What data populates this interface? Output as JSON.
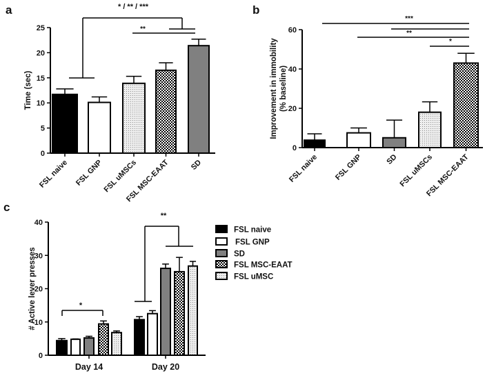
{
  "chart_data": [
    {
      "panel_label": "a",
      "type": "bar",
      "ylabel": "Time (sec)",
      "ylim": [
        0,
        25
      ],
      "yticks": [
        "0",
        "5",
        "10",
        "15",
        "20",
        "25"
      ],
      "categories": [
        "FSL naive",
        "FSL GNP",
        "FSL uMSCs",
        "FSL MSC-EAAT",
        "SD"
      ],
      "values": [
        11.7,
        10.1,
        13.9,
        16.5,
        21.4
      ],
      "error_upper": [
        12.8,
        11.2,
        15.3,
        18.0,
        22.7
      ],
      "fills": [
        "solid-black",
        "white",
        "dotted",
        "checker",
        "gray"
      ],
      "annotations": [
        {
          "text": "* / ** / ***",
          "compare": "FSL naive & FSL GNP vs FSL MSC-EAAT & SD"
        },
        {
          "text": "**",
          "compare": "FSL uMSCs vs SD"
        }
      ]
    },
    {
      "panel_label": "b",
      "type": "bar",
      "ylabel": "Improvement in immobility",
      "ylabel2": "(% baseline)",
      "ylim": [
        0,
        60
      ],
      "yticks": [
        "0",
        "20",
        "40",
        "60"
      ],
      "categories": [
        "FSL naive",
        "FSL GNP",
        "SD",
        "FSL uMSCs",
        "FSL MSC-EAAT"
      ],
      "values": [
        3.8,
        7.5,
        5.0,
        18.0,
        43.0
      ],
      "error_upper": [
        7.0,
        10.0,
        14.0,
        23.3,
        48.0
      ],
      "fills": [
        "solid-black",
        "white",
        "gray",
        "dotted",
        "checker"
      ],
      "annotations": [
        {
          "text": "***",
          "compare": "FSL naive vs FSL MSC-EAAT"
        },
        {
          "text": "",
          "compare": "SD vs FSL MSC-EAAT"
        },
        {
          "text": "**",
          "compare": "FSL GNP vs FSL MSC-EAAT"
        },
        {
          "text": "*",
          "compare": "FSL uMSCs vs FSL MSC-EAAT"
        }
      ]
    },
    {
      "panel_label": "c",
      "type": "bar",
      "ylabel": "# Active lever presses",
      "ylim": [
        0,
        40
      ],
      "yticks": [
        "0",
        "10",
        "20",
        "30",
        "40"
      ],
      "categories": [
        "Day 14",
        "Day 20"
      ],
      "legend_position": "right",
      "series": [
        {
          "name": "FSL naive",
          "fill": "solid-black",
          "values": [
            4.4,
            10.7
          ],
          "error_upper": [
            5.0,
            11.6
          ]
        },
        {
          "name": "FSL GNP",
          "fill": "white",
          "values": [
            4.8,
            12.5
          ],
          "error_upper": [
            4.9,
            13.4
          ]
        },
        {
          "name": "SD",
          "fill": "gray",
          "values": [
            5.2,
            26.1
          ],
          "error_upper": [
            5.7,
            27.4
          ]
        },
        {
          "name": "FSL MSC-EAAT",
          "fill": "checker",
          "values": [
            9.4,
            25.1
          ],
          "error_upper": [
            10.3,
            29.4
          ]
        },
        {
          "name": "FSL uMSC",
          "fill": "dotted",
          "values": [
            6.8,
            26.8
          ],
          "error_upper": [
            7.3,
            28.2
          ]
        }
      ],
      "annotations": [
        {
          "text": "*",
          "compare": "Day 14: FSL naive vs FSL MSC-EAAT"
        },
        {
          "text": "**",
          "compare": "Day 20: FSL naive & FSL GNP vs SD, FSL MSC-EAAT, FSL uMSC"
        }
      ]
    }
  ],
  "colors": {
    "black": "#000000",
    "gray": "#808080",
    "white": "#ffffff",
    "dotted_bg": "#e8e8e8"
  }
}
